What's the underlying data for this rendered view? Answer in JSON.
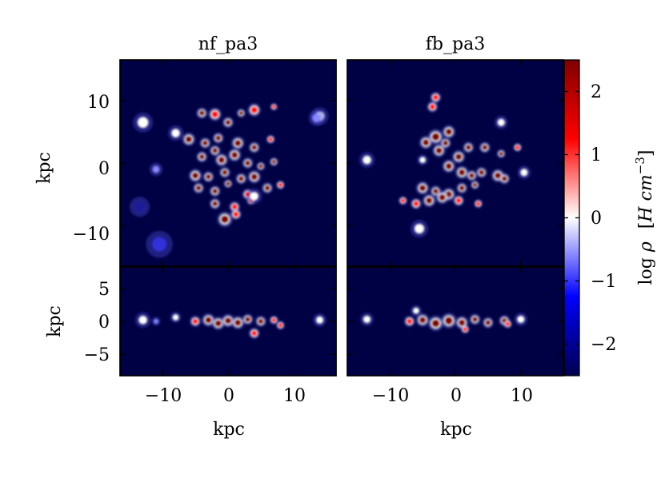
{
  "chart_data": {
    "type": "heatmap",
    "panels": [
      {
        "title": "nf_pa3",
        "face_on": {
          "xlim": [
            -16.5,
            16.5
          ],
          "ylim": [
            -16.5,
            16.5
          ],
          "ylabel": "kpc",
          "yticks": [
            10,
            0,
            -10
          ],
          "ytick_labels": [
            "10",
            "0",
            "−10"
          ]
        },
        "edge_on": {
          "xlim": [
            -16.5,
            16.5
          ],
          "ylim": [
            -8.2,
            8.2
          ],
          "ylabel": "kpc",
          "yticks": [
            5,
            0,
            -5
          ],
          "ytick_labels": [
            "5",
            "0",
            "−5"
          ],
          "xticks": [
            -10,
            0,
            10
          ],
          "xtick_labels": [
            "−10",
            "0",
            "10"
          ],
          "xlabel": "kpc"
        }
      },
      {
        "title": "fb_pa3",
        "face_on": {
          "xlim": [
            -16.5,
            16.5
          ],
          "ylim": [
            -16.5,
            16.5
          ]
        },
        "edge_on": {
          "xlim": [
            -16.5,
            16.5
          ],
          "ylim": [
            -8.2,
            8.2
          ],
          "xticks": [
            -10,
            0,
            10
          ],
          "xtick_labels": [
            "−10",
            "0",
            "10"
          ],
          "xlabel": "kpc"
        }
      }
    ],
    "colorbar": {
      "label_parts": [
        "log ",
        "ρ",
        "[",
        "H cm",
        "−3",
        "]"
      ],
      "range": [
        -2.5,
        2.5
      ],
      "ticks": [
        2,
        1,
        0,
        -1,
        -2
      ],
      "tick_labels": [
        "2",
        "1",
        "0",
        "−1",
        "−2"
      ],
      "colors": {
        "low": "#00004d",
        "mid_low": "#0000ff",
        "center": "#ffffff",
        "mid_high": "#ff0000",
        "high": "#800000"
      }
    },
    "background_color": "#000044",
    "clumps": {
      "nf_face": [
        [
          -13,
          6.5,
          0.9,
          0
        ],
        [
          -11,
          -1,
          0.6,
          -1
        ],
        [
          -13.5,
          -7,
          0.9,
          -1.8
        ],
        [
          -10.5,
          -13,
          1.2,
          -1.6
        ],
        [
          -8,
          4.8,
          0.7,
          0
        ],
        [
          14,
          7.5,
          0.8,
          0
        ],
        [
          13.5,
          7.2,
          0.7,
          -0.4
        ],
        [
          -4,
          8,
          0.5,
          1.5
        ],
        [
          -2,
          7.8,
          0.6,
          1.3
        ],
        [
          0,
          6.5,
          0.5,
          1.6
        ],
        [
          2,
          8,
          0.4,
          1.5
        ],
        [
          4,
          8.5,
          0.6,
          1.4
        ],
        [
          7,
          9,
          0.3,
          1.3
        ],
        [
          -6,
          3.8,
          0.6,
          1.5
        ],
        [
          -3.5,
          3.2,
          0.5,
          1.6
        ],
        [
          -1.5,
          4,
          0.5,
          1.7
        ],
        [
          1.5,
          3.2,
          0.6,
          1.5
        ],
        [
          4,
          2.5,
          0.5,
          1.5
        ],
        [
          6.5,
          3.8,
          0.4,
          1.4
        ],
        [
          -4,
          1,
          0.5,
          1.6
        ],
        [
          -2,
          2,
          0.5,
          1.8
        ],
        [
          -1,
          0.5,
          0.6,
          1.9
        ],
        [
          1,
          1.3,
          0.6,
          1.8
        ],
        [
          3,
          0,
          0.5,
          1.7
        ],
        [
          5,
          -0.5,
          0.4,
          1.6
        ],
        [
          7,
          0.2,
          0.4,
          1.5
        ],
        [
          -5,
          -2,
          0.6,
          1.5
        ],
        [
          -3,
          -2.2,
          0.5,
          1.6
        ],
        [
          -0.5,
          -1.5,
          0.5,
          1.7
        ],
        [
          2,
          -2.5,
          0.5,
          1.6
        ],
        [
          4,
          -2.2,
          0.6,
          1.5
        ],
        [
          -4.5,
          -4,
          0.5,
          1.5
        ],
        [
          -2,
          -4.5,
          0.5,
          1.6
        ],
        [
          0,
          -3.3,
          0.4,
          1.5
        ],
        [
          3,
          -5,
          0.5,
          1.4
        ],
        [
          6,
          -4,
          0.5,
          1.5
        ],
        [
          -2,
          -6.5,
          0.5,
          1.5
        ],
        [
          1,
          -7,
          0.5,
          1.4
        ],
        [
          3.5,
          -6,
          0.4,
          1.4
        ],
        [
          -0.5,
          -9,
          0.7,
          1.5
        ],
        [
          1.2,
          -8.2,
          0.5,
          1.4
        ],
        [
          4,
          -5.3,
          0.7,
          -0.3
        ],
        [
          8,
          -3.5,
          0.4,
          1.3
        ]
      ],
      "nf_edge": [
        [
          -13,
          0.2,
          0.7,
          0
        ],
        [
          -11,
          0,
          0.4,
          -0.5
        ],
        [
          -8,
          0.6,
          0.5,
          0
        ],
        [
          14,
          0.2,
          0.6,
          0
        ],
        [
          -5,
          0,
          0.5,
          1.4
        ],
        [
          -3,
          0.2,
          0.6,
          1.6
        ],
        [
          -1.5,
          -0.3,
          0.6,
          1.8
        ],
        [
          0,
          0.1,
          0.6,
          1.9
        ],
        [
          1.5,
          -0.2,
          0.6,
          1.8
        ],
        [
          3,
          0.3,
          0.5,
          1.7
        ],
        [
          5,
          0,
          0.5,
          1.6
        ],
        [
          7,
          0.2,
          0.4,
          1.4
        ],
        [
          8,
          -0.6,
          0.4,
          1.3
        ],
        [
          4,
          -1.8,
          0.5,
          1.0
        ]
      ],
      "fb_face": [
        [
          -13.5,
          0.5,
          0.7,
          0
        ],
        [
          -5.5,
          -10.5,
          0.8,
          0
        ],
        [
          -5,
          0.5,
          0.5,
          -0.2
        ],
        [
          7,
          6.5,
          0.6,
          0
        ],
        [
          10.5,
          -1.5,
          0.6,
          0
        ],
        [
          -3,
          10.5,
          0.5,
          1.4
        ],
        [
          -3.5,
          9,
          0.5,
          1.3
        ],
        [
          -1,
          5,
          0.6,
          1.6
        ],
        [
          -3,
          4.2,
          0.7,
          1.7
        ],
        [
          -4.5,
          3.3,
          0.6,
          1.6
        ],
        [
          -2.5,
          2,
          0.6,
          1.8
        ],
        [
          -1.5,
          3.2,
          0.5,
          1.9
        ],
        [
          0.5,
          1,
          0.6,
          1.8
        ],
        [
          2,
          2.5,
          0.5,
          1.7
        ],
        [
          4.5,
          2.5,
          0.5,
          1.6
        ],
        [
          7,
          1.5,
          0.4,
          1.5
        ],
        [
          9.5,
          2.5,
          0.4,
          1.4
        ],
        [
          -1,
          -0.5,
          0.6,
          1.7
        ],
        [
          1,
          -1.5,
          0.6,
          1.9
        ],
        [
          2.5,
          -2,
          0.5,
          1.8
        ],
        [
          4,
          -1.5,
          0.5,
          1.7
        ],
        [
          6.5,
          -2,
          0.6,
          1.5
        ],
        [
          7.5,
          -2.5,
          0.5,
          1.6
        ],
        [
          -5,
          -4,
          0.6,
          1.5
        ],
        [
          -3,
          -4.5,
          0.5,
          1.6
        ],
        [
          -1,
          -5,
          0.6,
          1.7
        ],
        [
          1,
          -4,
          0.5,
          1.6
        ],
        [
          3,
          -3.5,
          0.4,
          1.5
        ],
        [
          -6,
          -6.5,
          0.5,
          1.4
        ],
        [
          -4,
          -6,
          0.6,
          1.5
        ],
        [
          -2,
          -5.5,
          0.6,
          1.6
        ],
        [
          0.5,
          -6,
          0.5,
          1.4
        ],
        [
          3.5,
          -6.5,
          0.4,
          1.3
        ],
        [
          -8,
          -6,
          0.4,
          1.4
        ]
      ],
      "fb_edge": [
        [
          -13.5,
          0.3,
          0.6,
          0
        ],
        [
          -6,
          1.6,
          0.5,
          0
        ],
        [
          10,
          0.3,
          0.6,
          0
        ],
        [
          -7,
          0,
          0.5,
          1.3
        ],
        [
          -5,
          0.2,
          0.6,
          1.6
        ],
        [
          -3,
          -0.3,
          0.7,
          1.8
        ],
        [
          -1,
          0.1,
          0.7,
          1.9
        ],
        [
          1,
          -0.2,
          0.6,
          1.9
        ],
        [
          3,
          0.3,
          0.5,
          1.7
        ],
        [
          5,
          -0.2,
          0.5,
          1.6
        ],
        [
          7.5,
          0.1,
          0.5,
          1.5
        ],
        [
          8,
          -0.4,
          0.4,
          1.3
        ],
        [
          1.5,
          -1.2,
          0.4,
          1.0
        ]
      ]
    }
  }
}
